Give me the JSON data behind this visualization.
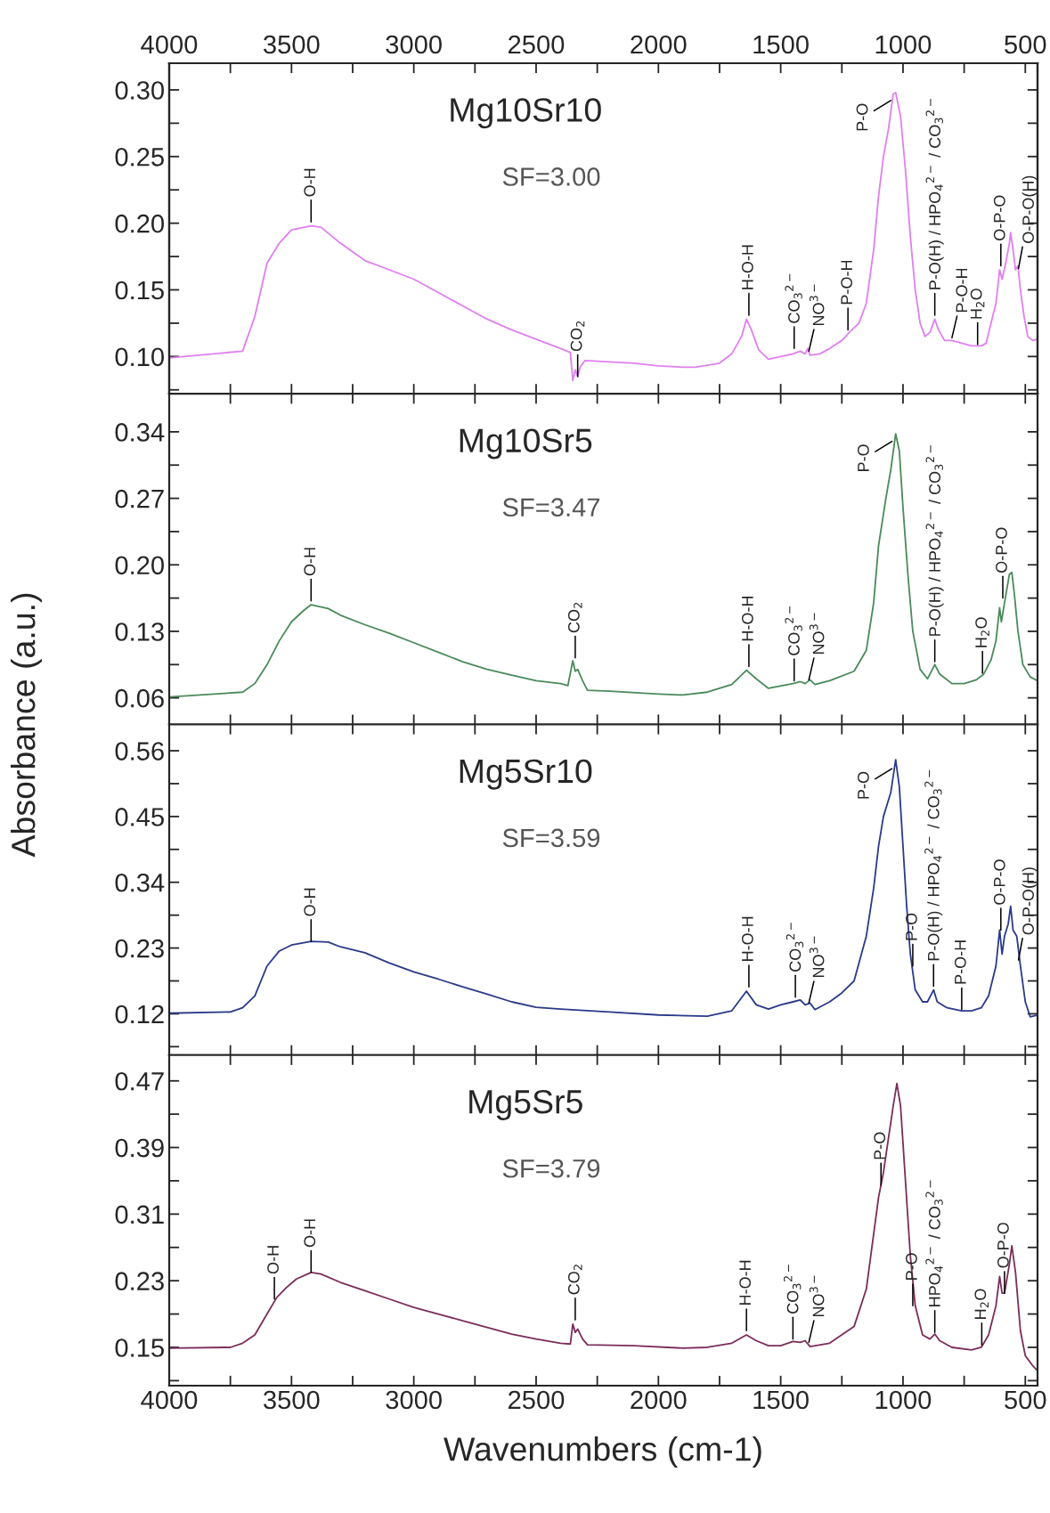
{
  "chart_data": [
    {
      "type": "line",
      "title": "Mg10Sr10",
      "subtitle": "SF=3.00",
      "xlim": [
        4000,
        450
      ],
      "ylim": [
        0.072,
        0.32
      ],
      "tick_labels": "y",
      "xticks": [
        {
          "value": 4000,
          "label": null
        },
        {
          "value": 3750,
          "label": null
        },
        {
          "value": 3500,
          "label": null
        },
        {
          "value": 3250,
          "label": null
        },
        {
          "value": 3000,
          "label": null
        },
        {
          "value": 2750,
          "label": null
        },
        {
          "value": 2500,
          "label": null
        },
        {
          "value": 2250,
          "label": null
        },
        {
          "value": 2000,
          "label": null
        },
        {
          "value": 1750,
          "label": null
        },
        {
          "value": 1500,
          "label": null
        },
        {
          "value": 1250,
          "label": null
        },
        {
          "value": 1000,
          "label": null
        },
        {
          "value": 750,
          "label": null
        },
        {
          "value": 500,
          "label": null
        }
      ],
      "x2lim": [
        4000,
        450
      ],
      "x2ticks": [
        4000,
        {
          "value": 3750,
          "label": null
        },
        3500,
        {
          "value": 3250,
          "label": null
        },
        3000,
        {
          "value": 2750,
          "label": null
        },
        2500,
        {
          "value": 2250,
          "label": null
        },
        2000,
        {
          "value": 1750,
          "label": null
        },
        1500,
        {
          "value": 1250,
          "label": null
        },
        1000,
        {
          "value": 750,
          "label": null
        },
        500
      ],
      "yticks": [
        {
          "value": 0.075,
          "label": null
        },
        {
          "value": 0.1,
          "label": "0.10"
        },
        {
          "value": 0.125,
          "label": null
        },
        0.15,
        {
          "value": 0.175,
          "label": null
        },
        {
          "value": 0.2,
          "label": "0.20"
        },
        {
          "value": 0.225,
          "label": null
        },
        0.25,
        {
          "value": 0.275,
          "label": null
        },
        {
          "value": 0.3,
          "label": "0.30"
        }
      ],
      "x": [
        4000,
        3700,
        3650,
        3600,
        3550,
        3500,
        3420,
        3380,
        3300,
        3200,
        3100,
        3000,
        2900,
        2800,
        2700,
        2600,
        2500,
        2400,
        2360,
        2350,
        2340,
        2330,
        2320,
        2300,
        2200,
        2100,
        2000,
        1900,
        1850,
        1750,
        1700,
        1660,
        1640,
        1620,
        1590,
        1550,
        1500,
        1450,
        1420,
        1400,
        1390,
        1380,
        1340,
        1300,
        1250,
        1220,
        1180,
        1150,
        1120,
        1100,
        1080,
        1060,
        1040,
        1030,
        1010,
        990,
        970,
        950,
        930,
        910,
        890,
        870,
        855,
        830,
        800,
        760,
        720,
        680,
        660,
        640,
        620,
        605,
        595,
        580,
        565,
        560,
        550,
        540,
        530,
        520,
        505,
        490,
        470,
        450
      ],
      "series": [
        {
          "color": "#e07ff0",
          "values": [
            0.099,
            0.104,
            0.13,
            0.17,
            0.185,
            0.195,
            0.198,
            0.197,
            0.185,
            0.172,
            0.165,
            0.158,
            0.148,
            0.138,
            0.128,
            0.12,
            0.113,
            0.106,
            0.103,
            0.082,
            0.09,
            0.085,
            0.092,
            0.097,
            0.096,
            0.095,
            0.093,
            0.092,
            0.092,
            0.095,
            0.102,
            0.115,
            0.128,
            0.12,
            0.105,
            0.098,
            0.1,
            0.102,
            0.104,
            0.102,
            0.106,
            0.101,
            0.102,
            0.106,
            0.112,
            0.118,
            0.125,
            0.14,
            0.18,
            0.22,
            0.25,
            0.27,
            0.297,
            0.298,
            0.28,
            0.24,
            0.19,
            0.15,
            0.125,
            0.115,
            0.118,
            0.128,
            0.12,
            0.112,
            0.112,
            0.11,
            0.108,
            0.108,
            0.11,
            0.125,
            0.14,
            0.165,
            0.158,
            0.17,
            0.185,
            0.193,
            0.18,
            0.165,
            0.168,
            0.15,
            0.13,
            0.115,
            0.112,
            0.113
          ]
        }
      ],
      "annotations": [
        {
          "text": "O-H",
          "x": 3420,
          "y": 0.201
        },
        {
          "text": "CO$_{2}$",
          "x": 2330,
          "y": 0.085
        },
        {
          "text": "H-O-H",
          "x": 1630,
          "y": 0.131
        },
        {
          "text": "CO$_{3}$$^{2−}$",
          "x": 1445,
          "y": 0.106
        },
        {
          "text": "NO$^{3−}$",
          "x": 1385,
          "y": 0.104
        },
        {
          "text": "P-O-H",
          "x": 1225,
          "y": 0.12
        },
        {
          "text": "P-O",
          "x": 1050,
          "y": 0.292
        },
        {
          "text": "P-O(H) / HPO$_{4}$$^{2−}$ / CO$_{3}$$^{2−}$",
          "x": 870,
          "y": 0.131
        },
        {
          "text": "P-O-H",
          "x": 800,
          "y": 0.114
        },
        {
          "text": "H$_{2}$O",
          "x": 695,
          "y": 0.109
        },
        {
          "text": "O-P-O",
          "x": 600,
          "y": 0.168
        },
        {
          "text": "O-P-O(H)",
          "x": 528,
          "y": 0.166
        }
      ]
    },
    {
      "type": "line",
      "title": "Mg10Sr5",
      "subtitle": "SF=3.47",
      "ylabel": "Absorbance (a.u.)",
      "xlim": [
        4000,
        450
      ],
      "ylim": [
        0.032,
        0.38
      ],
      "tick_labels": "y",
      "xticks": [
        {
          "value": 4000,
          "label": null
        },
        {
          "value": 3750,
          "label": null
        },
        {
          "value": 3500,
          "label": null
        },
        {
          "value": 3250,
          "label": null
        },
        {
          "value": 3000,
          "label": null
        },
        {
          "value": 2750,
          "label": null
        },
        {
          "value": 2500,
          "label": null
        },
        {
          "value": 2250,
          "label": null
        },
        {
          "value": 2000,
          "label": null
        },
        {
          "value": 1750,
          "label": null
        },
        {
          "value": 1500,
          "label": null
        },
        {
          "value": 1250,
          "label": null
        },
        {
          "value": 1000,
          "label": null
        },
        {
          "value": 750,
          "label": null
        },
        {
          "value": 500,
          "label": null
        }
      ],
      "yticks": [
        0.06,
        {
          "value": 0.095,
          "label": null
        },
        0.13,
        {
          "value": 0.165,
          "label": null
        },
        {
          "value": 0.2,
          "label": "0.20"
        },
        {
          "value": 0.235,
          "label": null
        },
        0.27,
        {
          "value": 0.305,
          "label": null
        },
        0.34
      ],
      "x": [
        4000,
        3700,
        3650,
        3600,
        3550,
        3500,
        3450,
        3420,
        3350,
        3300,
        3200,
        3100,
        3000,
        2900,
        2800,
        2700,
        2600,
        2500,
        2400,
        2370,
        2350,
        2340,
        2330,
        2310,
        2290,
        2200,
        2000,
        1900,
        1800,
        1700,
        1640,
        1600,
        1550,
        1450,
        1420,
        1400,
        1380,
        1360,
        1300,
        1200,
        1150,
        1120,
        1100,
        1070,
        1050,
        1030,
        1015,
        1000,
        980,
        960,
        930,
        900,
        870,
        850,
        800,
        750,
        700,
        670,
        660,
        640,
        620,
        605,
        598,
        585,
        565,
        555,
        545,
        530,
        510,
        480,
        450
      ],
      "series": [
        {
          "color": "#4a8a5a",
          "values": [
            0.061,
            0.066,
            0.075,
            0.095,
            0.12,
            0.14,
            0.152,
            0.158,
            0.154,
            0.147,
            0.137,
            0.128,
            0.118,
            0.108,
            0.098,
            0.09,
            0.084,
            0.078,
            0.075,
            0.073,
            0.099,
            0.088,
            0.09,
            0.078,
            0.068,
            0.067,
            0.064,
            0.063,
            0.066,
            0.074,
            0.089,
            0.08,
            0.07,
            0.075,
            0.077,
            0.075,
            0.079,
            0.074,
            0.078,
            0.088,
            0.11,
            0.16,
            0.22,
            0.27,
            0.3,
            0.338,
            0.32,
            0.26,
            0.19,
            0.13,
            0.09,
            0.08,
            0.095,
            0.085,
            0.075,
            0.075,
            0.079,
            0.085,
            0.09,
            0.1,
            0.12,
            0.155,
            0.14,
            0.16,
            0.19,
            0.192,
            0.17,
            0.13,
            0.095,
            0.082,
            0.078
          ]
        }
      ],
      "annotations": [
        {
          "text": "O-H",
          "x": 3420,
          "y": 0.162
        },
        {
          "text": "CO$_{2}$",
          "x": 2340,
          "y": 0.102
        },
        {
          "text": "H-O-H",
          "x": 1630,
          "y": 0.093
        },
        {
          "text": "CO$_{3}$$^{2−}$",
          "x": 1445,
          "y": 0.078
        },
        {
          "text": "NO$^{3−}$",
          "x": 1385,
          "y": 0.079
        },
        {
          "text": "P-O",
          "x": 1045,
          "y": 0.33
        },
        {
          "text": "P-O(H) / HPO$_{4}$$^{2−}$ / CO$_{3}$$^{2−}$",
          "x": 870,
          "y": 0.098
        },
        {
          "text": "H$_{2}$O",
          "x": 675,
          "y": 0.086
        },
        {
          "text": "O-P-O",
          "x": 592,
          "y": 0.165
        }
      ]
    },
    {
      "type": "line",
      "title": "Mg5Sr10",
      "subtitle": "SF=3.59",
      "xlim": [
        4000,
        450
      ],
      "ylim": [
        0.051,
        0.604
      ],
      "tick_labels": "y",
      "xticks": [
        {
          "value": 4000,
          "label": null
        },
        {
          "value": 3750,
          "label": null
        },
        {
          "value": 3500,
          "label": null
        },
        {
          "value": 3250,
          "label": null
        },
        {
          "value": 3000,
          "label": null
        },
        {
          "value": 2750,
          "label": null
        },
        {
          "value": 2500,
          "label": null
        },
        {
          "value": 2250,
          "label": null
        },
        {
          "value": 2000,
          "label": null
        },
        {
          "value": 1750,
          "label": null
        },
        {
          "value": 1500,
          "label": null
        },
        {
          "value": 1250,
          "label": null
        },
        {
          "value": 1000,
          "label": null
        },
        {
          "value": 750,
          "label": null
        },
        {
          "value": 500,
          "label": null
        }
      ],
      "yticks": [
        {
          "value": 0.065,
          "label": null
        },
        0.12,
        {
          "value": 0.175,
          "label": null
        },
        0.23,
        {
          "value": 0.285,
          "label": null
        },
        0.34,
        {
          "value": 0.395,
          "label": null
        },
        0.45,
        {
          "value": 0.505,
          "label": null
        },
        0.56
      ],
      "x": [
        4000,
        3750,
        3700,
        3650,
        3600,
        3550,
        3500,
        3420,
        3350,
        3300,
        3200,
        3100,
        3000,
        2900,
        2800,
        2700,
        2600,
        2500,
        2400,
        2200,
        2000,
        1800,
        1700,
        1640,
        1600,
        1550,
        1500,
        1450,
        1420,
        1400,
        1380,
        1360,
        1300,
        1250,
        1200,
        1150,
        1120,
        1100,
        1080,
        1050,
        1030,
        1015,
        1000,
        985,
        970,
        950,
        920,
        900,
        875,
        860,
        820,
        760,
        720,
        680,
        650,
        620,
        605,
        595,
        585,
        570,
        560,
        550,
        535,
        520,
        500,
        480,
        450
      ],
      "series": [
        {
          "color": "#2a3a8a",
          "values": [
            0.121,
            0.123,
            0.13,
            0.15,
            0.2,
            0.225,
            0.235,
            0.241,
            0.24,
            0.232,
            0.222,
            0.205,
            0.19,
            0.178,
            0.165,
            0.153,
            0.14,
            0.131,
            0.128,
            0.123,
            0.118,
            0.116,
            0.125,
            0.158,
            0.135,
            0.128,
            0.135,
            0.14,
            0.143,
            0.135,
            0.138,
            0.127,
            0.14,
            0.155,
            0.175,
            0.25,
            0.33,
            0.4,
            0.45,
            0.49,
            0.545,
            0.5,
            0.4,
            0.3,
            0.22,
            0.16,
            0.14,
            0.14,
            0.16,
            0.14,
            0.13,
            0.125,
            0.125,
            0.13,
            0.15,
            0.2,
            0.26,
            0.22,
            0.25,
            0.27,
            0.3,
            0.26,
            0.25,
            0.2,
            0.14,
            0.115,
            0.118
          ]
        }
      ],
      "annotations": [
        {
          "text": "O-H",
          "x": 3420,
          "y": 0.241
        },
        {
          "text": "H-O-H",
          "x": 1630,
          "y": 0.165
        },
        {
          "text": "CO$_{3}$$^{2−}$",
          "x": 1440,
          "y": 0.148
        },
        {
          "text": "NO$^{3−}$",
          "x": 1385,
          "y": 0.138
        },
        {
          "text": "P-O",
          "x": 1045,
          "y": 0.53
        },
        {
          "text": "P-O",
          "x": 960,
          "y": 0.2
        },
        {
          "text": "P-O(H) / HPO$_{4}$$^{2−}$ / CO$_{3}$$^{2−}$",
          "x": 875,
          "y": 0.166
        },
        {
          "text": "P-O-H",
          "x": 760,
          "y": 0.127
        },
        {
          "text": "O-P-O",
          "x": 600,
          "y": 0.26
        },
        {
          "text": "O-P-O(H)",
          "x": 528,
          "y": 0.21
        }
      ]
    },
    {
      "type": "line",
      "title": "Mg5Sr5",
      "subtitle": "SF=3.79",
      "xlabel": "Wavenumbers (cm-1)",
      "xlim": [
        4000,
        450
      ],
      "ylim": [
        0.104,
        0.501
      ],
      "xticks": [
        4000,
        {
          "value": 3750,
          "label": null
        },
        3500,
        {
          "value": 3250,
          "label": null
        },
        3000,
        {
          "value": 2750,
          "label": null
        },
        2500,
        {
          "value": 2250,
          "label": null
        },
        2000,
        {
          "value": 1750,
          "label": null
        },
        1500,
        {
          "value": 1250,
          "label": null
        },
        1000,
        {
          "value": 750,
          "label": null
        },
        500
      ],
      "yticks": [
        {
          "value": 0.11,
          "label": null
        },
        0.15,
        {
          "value": 0.19,
          "label": null
        },
        0.23,
        {
          "value": 0.27,
          "label": null
        },
        0.31,
        {
          "value": 0.35,
          "label": null
        },
        0.39,
        {
          "value": 0.43,
          "label": null
        },
        0.47
      ],
      "x": [
        4000,
        3750,
        3700,
        3650,
        3600,
        3560,
        3520,
        3480,
        3420,
        3380,
        3300,
        3200,
        3100,
        3000,
        2900,
        2800,
        2700,
        2600,
        2500,
        2400,
        2360,
        2350,
        2340,
        2330,
        2310,
        2290,
        2100,
        1900,
        1800,
        1700,
        1640,
        1600,
        1550,
        1500,
        1450,
        1420,
        1400,
        1380,
        1300,
        1200,
        1150,
        1100,
        1080,
        1060,
        1040,
        1025,
        1010,
        990,
        970,
        950,
        920,
        890,
        870,
        850,
        800,
        720,
        680,
        650,
        620,
        605,
        595,
        585,
        565,
        555,
        540,
        520,
        500,
        470,
        450
      ],
      "series": [
        {
          "color": "#7b2d5a",
          "values": [
            0.149,
            0.15,
            0.155,
            0.165,
            0.19,
            0.21,
            0.222,
            0.232,
            0.24,
            0.238,
            0.228,
            0.218,
            0.208,
            0.198,
            0.19,
            0.182,
            0.174,
            0.166,
            0.16,
            0.155,
            0.154,
            0.178,
            0.168,
            0.172,
            0.16,
            0.153,
            0.152,
            0.149,
            0.15,
            0.155,
            0.165,
            0.158,
            0.152,
            0.152,
            0.157,
            0.156,
            0.158,
            0.151,
            0.155,
            0.175,
            0.22,
            0.33,
            0.36,
            0.4,
            0.44,
            0.467,
            0.44,
            0.35,
            0.26,
            0.2,
            0.165,
            0.16,
            0.166,
            0.158,
            0.15,
            0.147,
            0.15,
            0.165,
            0.2,
            0.235,
            0.215,
            0.215,
            0.25,
            0.272,
            0.24,
            0.17,
            0.14,
            0.128,
            0.122
          ]
        }
      ],
      "annotations": [
        {
          "text": "O-H",
          "x": 3570,
          "y": 0.208
        },
        {
          "text": "O-H",
          "x": 3420,
          "y": 0.24
        },
        {
          "text": "CO$_{2}$",
          "x": 2340,
          "y": 0.183
        },
        {
          "text": "H-O-H",
          "x": 1640,
          "y": 0.17
        },
        {
          "text": "CO$_{3}$$^{2−}$",
          "x": 1450,
          "y": 0.16
        },
        {
          "text": "NO$^{3−}$",
          "x": 1385,
          "y": 0.156
        },
        {
          "text": "P-O",
          "x": 1090,
          "y": 0.345
        },
        {
          "text": "P-O",
          "x": 960,
          "y": 0.2
        },
        {
          "text": "HPO$_{4}$$^{2−}$ / CO$_{3}$$^{2−}$",
          "x": 870,
          "y": 0.168
        },
        {
          "text": "H$_{2}$O",
          "x": 678,
          "y": 0.153
        },
        {
          "text": "O-P-O",
          "x": 585,
          "y": 0.215
        }
      ]
    }
  ]
}
